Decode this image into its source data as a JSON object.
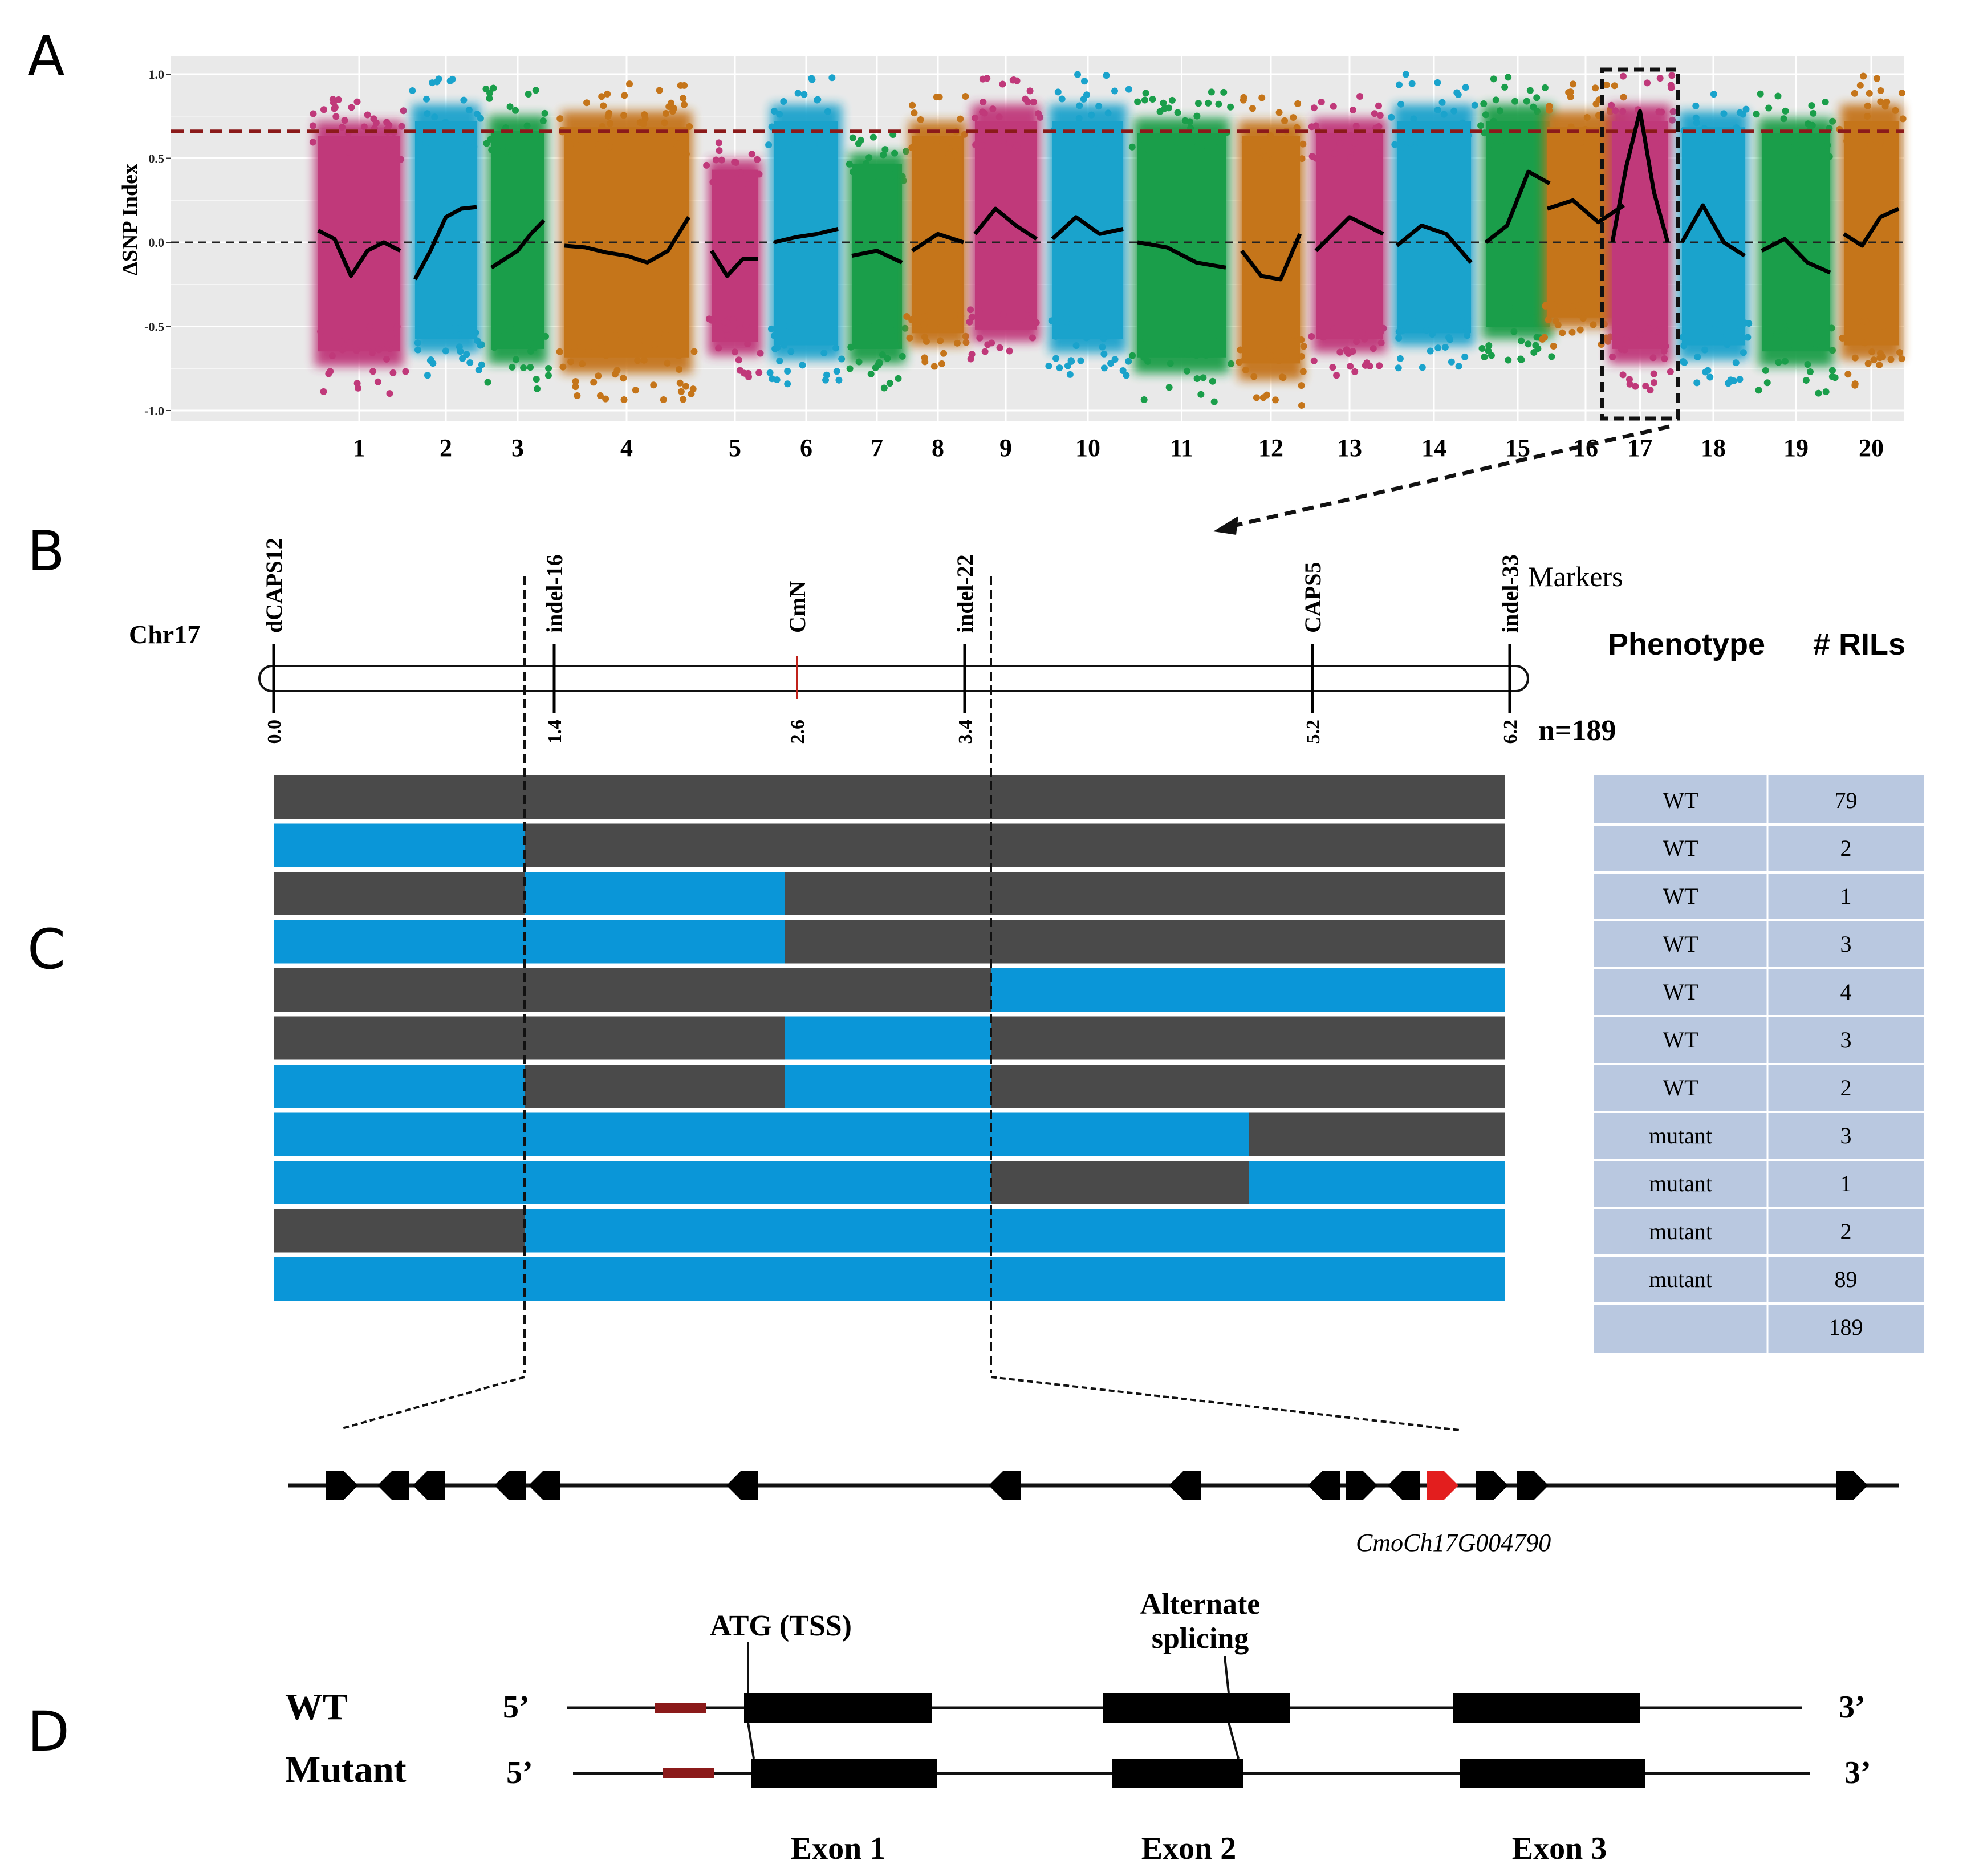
{
  "panels": [
    "A",
    "B",
    "C",
    "D"
  ],
  "colors": {
    "pink": "#c0397a",
    "cyan": "#1aa3cc",
    "green": "#1a9e4a",
    "orange": "#c5751a",
    "threshold": "#8b1a1a",
    "haplo_wt": "#4a4a4a",
    "haplo_mut": "#0a96d8",
    "table_bg": "#b9c8e0",
    "red_gene": "#e31e1e",
    "utr": "#8b1a1a"
  },
  "chart_data": {
    "type": "scatter",
    "title": "",
    "ylabel": "ΔSNP Index",
    "xlabel": "",
    "ylim": [
      -1.0,
      1.0
    ],
    "yticks": [
      "1.0",
      "0.5",
      "0.0",
      "-0.5",
      "-1.0"
    ],
    "threshold": 0.66,
    "zero_line": 0.0,
    "highlight_chromosome": "17",
    "chromosomes": [
      {
        "name": "1",
        "color": "pink",
        "lo": -0.9,
        "hi": 0.88,
        "trend": [
          0.07,
          0.02,
          -0.2,
          -0.05,
          0.0,
          -0.05
        ]
      },
      {
        "name": "2",
        "color": "cyan",
        "lo": -0.8,
        "hi": 1.0,
        "trend": [
          -0.22,
          -0.05,
          0.15,
          0.2,
          0.21
        ]
      },
      {
        "name": "3",
        "color": "green",
        "lo": -0.88,
        "hi": 0.92,
        "trend": [
          -0.15,
          -0.1,
          -0.05,
          0.05,
          0.13
        ]
      },
      {
        "name": "4",
        "color": "orange",
        "lo": -0.95,
        "hi": 0.95,
        "trend": [
          -0.02,
          -0.03,
          -0.06,
          -0.08,
          -0.12,
          -0.05,
          0.15
        ]
      },
      {
        "name": "5",
        "color": "pink",
        "lo": -0.82,
        "hi": 0.6,
        "trend": [
          -0.05,
          -0.2,
          -0.1,
          -0.1
        ]
      },
      {
        "name": "6",
        "color": "cyan",
        "lo": -0.85,
        "hi": 1.0,
        "trend": [
          0.0,
          0.03,
          0.05,
          0.08
        ]
      },
      {
        "name": "7",
        "color": "green",
        "lo": -0.88,
        "hi": 0.65,
        "trend": [
          -0.08,
          -0.05,
          -0.12
        ]
      },
      {
        "name": "8",
        "color": "orange",
        "lo": -0.75,
        "hi": 0.88,
        "trend": [
          -0.05,
          0.05,
          0.0
        ]
      },
      {
        "name": "9",
        "color": "pink",
        "lo": -0.72,
        "hi": 1.0,
        "trend": [
          0.05,
          0.2,
          0.1,
          0.02
        ]
      },
      {
        "name": "10",
        "color": "cyan",
        "lo": -0.8,
        "hi": 1.0,
        "trend": [
          0.02,
          0.15,
          0.05,
          0.08
        ]
      },
      {
        "name": "11",
        "color": "green",
        "lo": -0.95,
        "hi": 0.9,
        "trend": [
          0.0,
          -0.03,
          -0.12,
          -0.15
        ]
      },
      {
        "name": "12",
        "color": "orange",
        "lo": -1.0,
        "hi": 0.88,
        "trend": [
          -0.05,
          -0.2,
          -0.22,
          0.05
        ]
      },
      {
        "name": "13",
        "color": "pink",
        "lo": -0.8,
        "hi": 0.9,
        "trend": [
          -0.05,
          0.15,
          0.05
        ]
      },
      {
        "name": "14",
        "color": "cyan",
        "lo": -0.75,
        "hi": 1.0,
        "trend": [
          -0.02,
          0.1,
          0.05,
          -0.12
        ]
      },
      {
        "name": "15",
        "color": "green",
        "lo": -0.7,
        "hi": 1.0,
        "trend": [
          0.0,
          0.1,
          0.42,
          0.35
        ]
      },
      {
        "name": "16",
        "color": "orange",
        "lo": -0.62,
        "hi": 0.95,
        "trend": [
          0.2,
          0.25,
          0.12,
          0.22
        ]
      },
      {
        "name": "17",
        "color": "pink",
        "lo": -0.88,
        "hi": 1.0,
        "trend": [
          0.0,
          0.45,
          0.78,
          0.3,
          0.0
        ]
      },
      {
        "name": "18",
        "color": "cyan",
        "lo": -0.85,
        "hi": 0.95,
        "trend": [
          0.0,
          0.22,
          0.0,
          -0.08
        ]
      },
      {
        "name": "19",
        "color": "green",
        "lo": -0.9,
        "hi": 0.9,
        "trend": [
          -0.05,
          0.02,
          -0.12,
          -0.18
        ]
      },
      {
        "name": "20",
        "color": "orange",
        "lo": -0.85,
        "hi": 1.0,
        "trend": [
          0.05,
          -0.02,
          0.15,
          0.2
        ]
      }
    ]
  },
  "panel_b": {
    "chromosome": "Chr17",
    "markers_label": "Markers",
    "n_label": "n=189",
    "markers": [
      {
        "name": "dCAPS12",
        "pos": "0.0",
        "value": 0.0,
        "highlight": false
      },
      {
        "name": "indel-16",
        "pos": "1.4",
        "value": 1.4,
        "highlight": false
      },
      {
        "name": "CmN",
        "pos": "2.6",
        "value": 2.6,
        "highlight": true
      },
      {
        "name": "indel-22",
        "pos": "3.4",
        "value": 3.4,
        "highlight": false
      },
      {
        "name": "CAPS5",
        "pos": "5.2",
        "value": 5.2,
        "highlight": false
      },
      {
        "name": "indel-33",
        "pos": "6.2",
        "value": 6.2,
        "highlight": false
      }
    ]
  },
  "panel_c": {
    "header_phenotype": "Phenotype",
    "header_rils": "# RILs",
    "segments": [
      0,
      1.3,
      2.6,
      3.6,
      4.9,
      6.2
    ],
    "rows": [
      {
        "phenotype": "WT",
        "count": "79",
        "genotype": [
          "g",
          "g",
          "g",
          "g",
          "g"
        ]
      },
      {
        "phenotype": "WT",
        "count": "2",
        "genotype": [
          "b",
          "g",
          "g",
          "g",
          "g"
        ]
      },
      {
        "phenotype": "WT",
        "count": "1",
        "genotype": [
          "g",
          "b",
          "g",
          "g",
          "g"
        ]
      },
      {
        "phenotype": "WT",
        "count": "3",
        "genotype": [
          "b",
          "b",
          "g",
          "g",
          "g"
        ]
      },
      {
        "phenotype": "WT",
        "count": "4",
        "genotype": [
          "g",
          "g",
          "g",
          "b",
          "b"
        ]
      },
      {
        "phenotype": "WT",
        "count": "3",
        "genotype": [
          "g",
          "g",
          "b",
          "g",
          "g"
        ]
      },
      {
        "phenotype": "WT",
        "count": "2",
        "genotype": [
          "b",
          "g",
          "b",
          "g",
          "g"
        ]
      },
      {
        "phenotype": "mutant",
        "count": "3",
        "genotype": [
          "b",
          "b",
          "b",
          "b",
          "g"
        ]
      },
      {
        "phenotype": "mutant",
        "count": "1",
        "genotype": [
          "b",
          "b",
          "b",
          "g",
          "b"
        ]
      },
      {
        "phenotype": "mutant",
        "count": "2",
        "genotype": [
          "g",
          "b",
          "b",
          "b",
          "b"
        ]
      },
      {
        "phenotype": "mutant",
        "count": "89",
        "genotype": [
          "b",
          "b",
          "b",
          "b",
          "b"
        ]
      }
    ],
    "total": "189",
    "candidate_gene": "CmoCh17G004790",
    "genes": [
      {
        "dir": "right",
        "red": false
      },
      {
        "dir": "left",
        "red": false
      },
      {
        "dir": "left",
        "red": false
      },
      {
        "dir": "left",
        "red": false
      },
      {
        "dir": "left",
        "red": false
      },
      {
        "dir": "left",
        "red": false
      },
      {
        "dir": "left",
        "red": false
      },
      {
        "dir": "left",
        "red": false
      },
      {
        "dir": "left",
        "red": false
      },
      {
        "dir": "right",
        "red": false
      },
      {
        "dir": "left",
        "red": false
      },
      {
        "dir": "right",
        "red": true
      },
      {
        "dir": "right",
        "red": false
      },
      {
        "dir": "right",
        "red": false
      },
      {
        "dir": "right",
        "red": false
      }
    ]
  },
  "panel_d": {
    "atg_label": "ATG (TSS)",
    "alt_label_1": "Alternate",
    "alt_label_2": "splicing",
    "wt_label": "WT",
    "mutant_label": "Mutant",
    "five_prime": "5’",
    "three_prime": "3’",
    "exons": [
      "Exon 1",
      "Exon 2",
      "Exon 3"
    ]
  }
}
